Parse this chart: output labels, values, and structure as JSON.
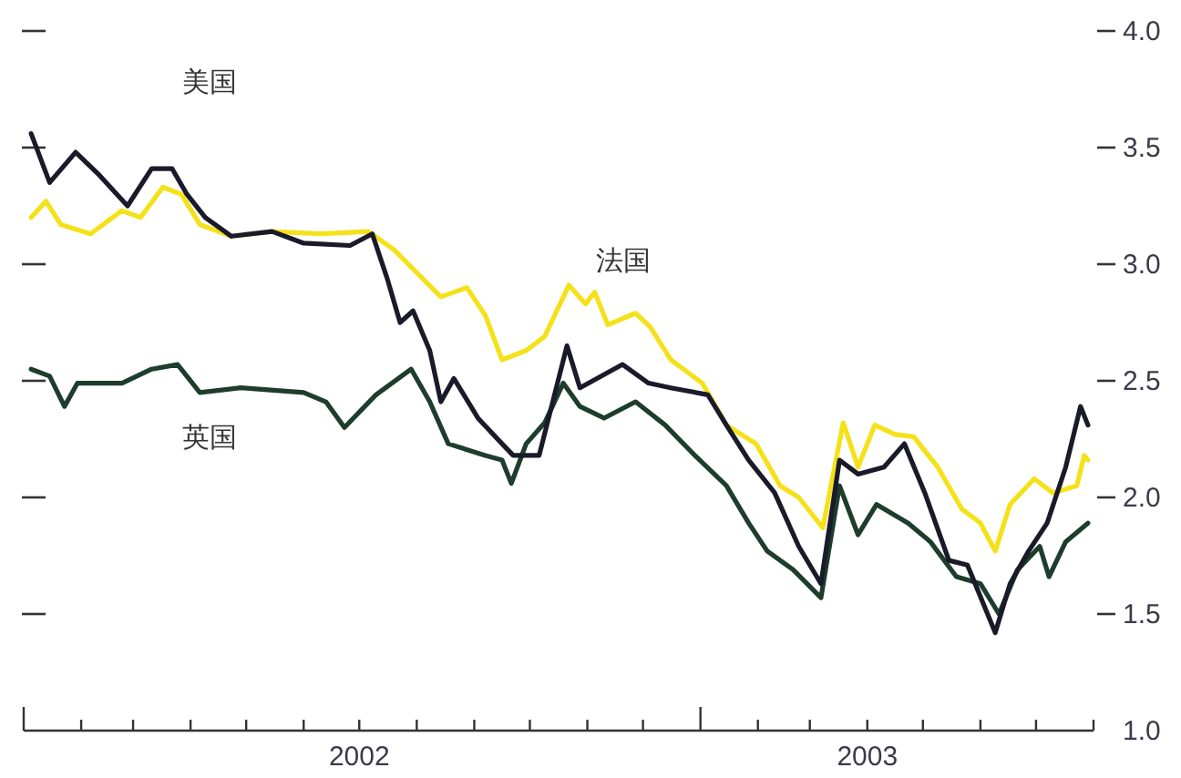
{
  "chart_data": {
    "type": "line",
    "xlim": [
      "2002-01-01",
      "2003-08-01"
    ],
    "xticks": [
      {
        "value": "2002-01-01",
        "label": null
      },
      {
        "value": "2002-02-01",
        "label": null
      },
      {
        "value": "2002-03-01",
        "label": null
      },
      {
        "value": "2002-04-01",
        "label": null
      },
      {
        "value": "2002-05-01",
        "label": null
      },
      {
        "value": "2002-06-01",
        "label": null
      },
      {
        "value": "2002-07-01",
        "label": "2002"
      },
      {
        "value": "2002-08-01",
        "label": null
      },
      {
        "value": "2002-09-01",
        "label": null
      },
      {
        "value": "2002-10-01",
        "label": null
      },
      {
        "value": "2002-11-01",
        "label": null
      },
      {
        "value": "2002-12-01",
        "label": null
      },
      {
        "value": "2003-01-01",
        "label": null
      },
      {
        "value": "2003-02-01",
        "label": null
      },
      {
        "value": "2003-03-01",
        "label": null
      },
      {
        "value": "2003-04-01",
        "label": "2003"
      },
      {
        "value": "2003-05-01",
        "label": null
      },
      {
        "value": "2003-06-01",
        "label": null
      },
      {
        "value": "2003-07-01",
        "label": null
      },
      {
        "value": "2003-08-01",
        "label": null
      }
    ],
    "ylim": [
      1,
      4
    ],
    "yticks": [
      {
        "value": 1,
        "label": "1.0"
      },
      {
        "value": 1.5,
        "label": "1.5"
      },
      {
        "value": 2,
        "label": "2.0"
      },
      {
        "value": 2.5,
        "label": "2.5"
      },
      {
        "value": 3,
        "label": "3.0"
      },
      {
        "value": 3.5,
        "label": "3.5"
      },
      {
        "value": 4,
        "label": "4.0"
      }
    ],
    "series": [
      {
        "name": "法国",
        "color": "#f5e11a",
        "x": [
          "2002-01-05",
          "2002-01-13",
          "2002-01-21",
          "2002-02-06",
          "2002-02-23",
          "2002-03-05",
          "2002-03-17",
          "2002-03-27",
          "2002-04-06",
          "2002-04-23",
          "2002-05-15",
          "2002-06-10",
          "2002-07-06",
          "2002-07-20",
          "2002-08-04",
          "2002-08-14",
          "2002-08-28",
          "2002-09-07",
          "2002-09-16",
          "2002-09-29",
          "2002-10-09",
          "2002-10-22",
          "2002-10-31",
          "2002-11-05",
          "2002-11-12",
          "2002-11-27",
          "2002-12-05",
          "2002-12-16",
          "2003-01-02",
          "2003-01-15",
          "2003-01-31",
          "2003-02-13",
          "2003-02-23",
          "2003-03-08",
          "2003-03-19",
          "2003-03-27",
          "2003-04-05",
          "2003-04-16",
          "2003-04-26",
          "2003-05-09",
          "2003-05-22",
          "2003-06-01",
          "2003-06-09",
          "2003-06-17",
          "2003-06-30",
          "2003-07-10",
          "2003-07-23",
          "2003-07-27",
          "2003-07-29"
        ],
        "values": [
          3.2,
          3.27,
          3.17,
          3.13,
          3.23,
          3.2,
          3.33,
          3.3,
          3.17,
          3.12,
          3.14,
          3.13,
          3.14,
          3.06,
          2.94,
          2.86,
          2.9,
          2.78,
          2.59,
          2.63,
          2.69,
          2.91,
          2.83,
          2.88,
          2.74,
          2.79,
          2.73,
          2.59,
          2.49,
          2.31,
          2.23,
          2.05,
          2.0,
          1.87,
          2.32,
          2.13,
          2.31,
          2.27,
          2.26,
          2.13,
          1.95,
          1.89,
          1.77,
          1.97,
          2.08,
          2.02,
          2.05,
          2.18,
          2.16
        ]
      },
      {
        "name": "英国",
        "color": "#1e3d2c",
        "x": [
          "2002-01-05",
          "2002-01-15",
          "2002-01-23",
          "2002-01-30",
          "2002-02-23",
          "2002-03-11",
          "2002-03-25",
          "2002-04-06",
          "2002-04-28",
          "2002-06-01",
          "2002-06-13",
          "2002-06-23",
          "2002-07-10",
          "2002-07-29",
          "2002-08-08",
          "2002-08-18",
          "2002-09-07",
          "2002-09-16",
          "2002-09-21",
          "2002-09-29",
          "2002-10-09",
          "2002-10-19",
          "2002-10-28",
          "2002-11-10",
          "2002-11-27",
          "2002-12-13",
          "2002-12-29",
          "2003-01-15",
          "2003-01-27",
          "2003-02-06",
          "2003-02-20",
          "2003-03-07",
          "2003-03-17",
          "2003-03-27",
          "2003-04-06",
          "2003-04-23",
          "2003-05-05",
          "2003-05-19",
          "2003-06-01",
          "2003-06-11",
          "2003-06-21",
          "2003-07-03",
          "2003-07-08",
          "2003-07-17",
          "2003-07-29"
        ],
        "values": [
          2.55,
          2.52,
          2.39,
          2.49,
          2.49,
          2.55,
          2.57,
          2.45,
          2.47,
          2.45,
          2.41,
          2.3,
          2.44,
          2.55,
          2.41,
          2.23,
          2.18,
          2.16,
          2.06,
          2.23,
          2.32,
          2.49,
          2.39,
          2.34,
          2.41,
          2.31,
          2.18,
          2.05,
          1.89,
          1.77,
          1.69,
          1.57,
          2.05,
          1.84,
          1.97,
          1.89,
          1.81,
          1.66,
          1.63,
          1.5,
          1.69,
          1.79,
          1.66,
          1.81,
          1.89
        ]
      },
      {
        "name": "美国",
        "color": "#1a1a2a",
        "x": [
          "2002-01-05",
          "2002-01-15",
          "2002-01-29",
          "2002-02-11",
          "2002-02-26",
          "2002-03-11",
          "2002-03-22",
          "2002-03-30",
          "2002-04-09",
          "2002-04-23",
          "2002-05-15",
          "2002-06-01",
          "2002-06-26",
          "2002-07-08",
          "2002-07-16",
          "2002-07-23",
          "2002-07-30",
          "2002-08-08",
          "2002-08-14",
          "2002-08-21",
          "2002-09-03",
          "2002-09-16",
          "2002-09-22",
          "2002-10-06",
          "2002-10-21",
          "2002-10-28",
          "2002-11-20",
          "2002-12-04",
          "2002-12-16",
          "2003-01-05",
          "2003-01-15",
          "2003-01-27",
          "2003-02-10",
          "2003-02-23",
          "2003-03-07",
          "2003-03-17",
          "2003-03-27",
          "2003-04-10",
          "2003-04-21",
          "2003-05-02",
          "2003-05-15",
          "2003-05-25",
          "2003-06-09",
          "2003-06-17",
          "2003-06-27",
          "2003-07-07",
          "2003-07-17",
          "2003-07-25",
          "2003-07-29"
        ],
        "values": [
          3.56,
          3.35,
          3.48,
          3.38,
          3.25,
          3.41,
          3.41,
          3.3,
          3.2,
          3.12,
          3.14,
          3.09,
          3.08,
          3.13,
          2.94,
          2.75,
          2.8,
          2.63,
          2.41,
          2.51,
          2.34,
          2.23,
          2.18,
          2.18,
          2.65,
          2.47,
          2.57,
          2.49,
          2.47,
          2.44,
          2.31,
          2.16,
          2.02,
          1.79,
          1.63,
          2.16,
          2.1,
          2.13,
          2.23,
          2.02,
          1.73,
          1.71,
          1.42,
          1.63,
          1.77,
          1.89,
          2.13,
          2.39,
          2.31
        ]
      }
    ]
  }
}
